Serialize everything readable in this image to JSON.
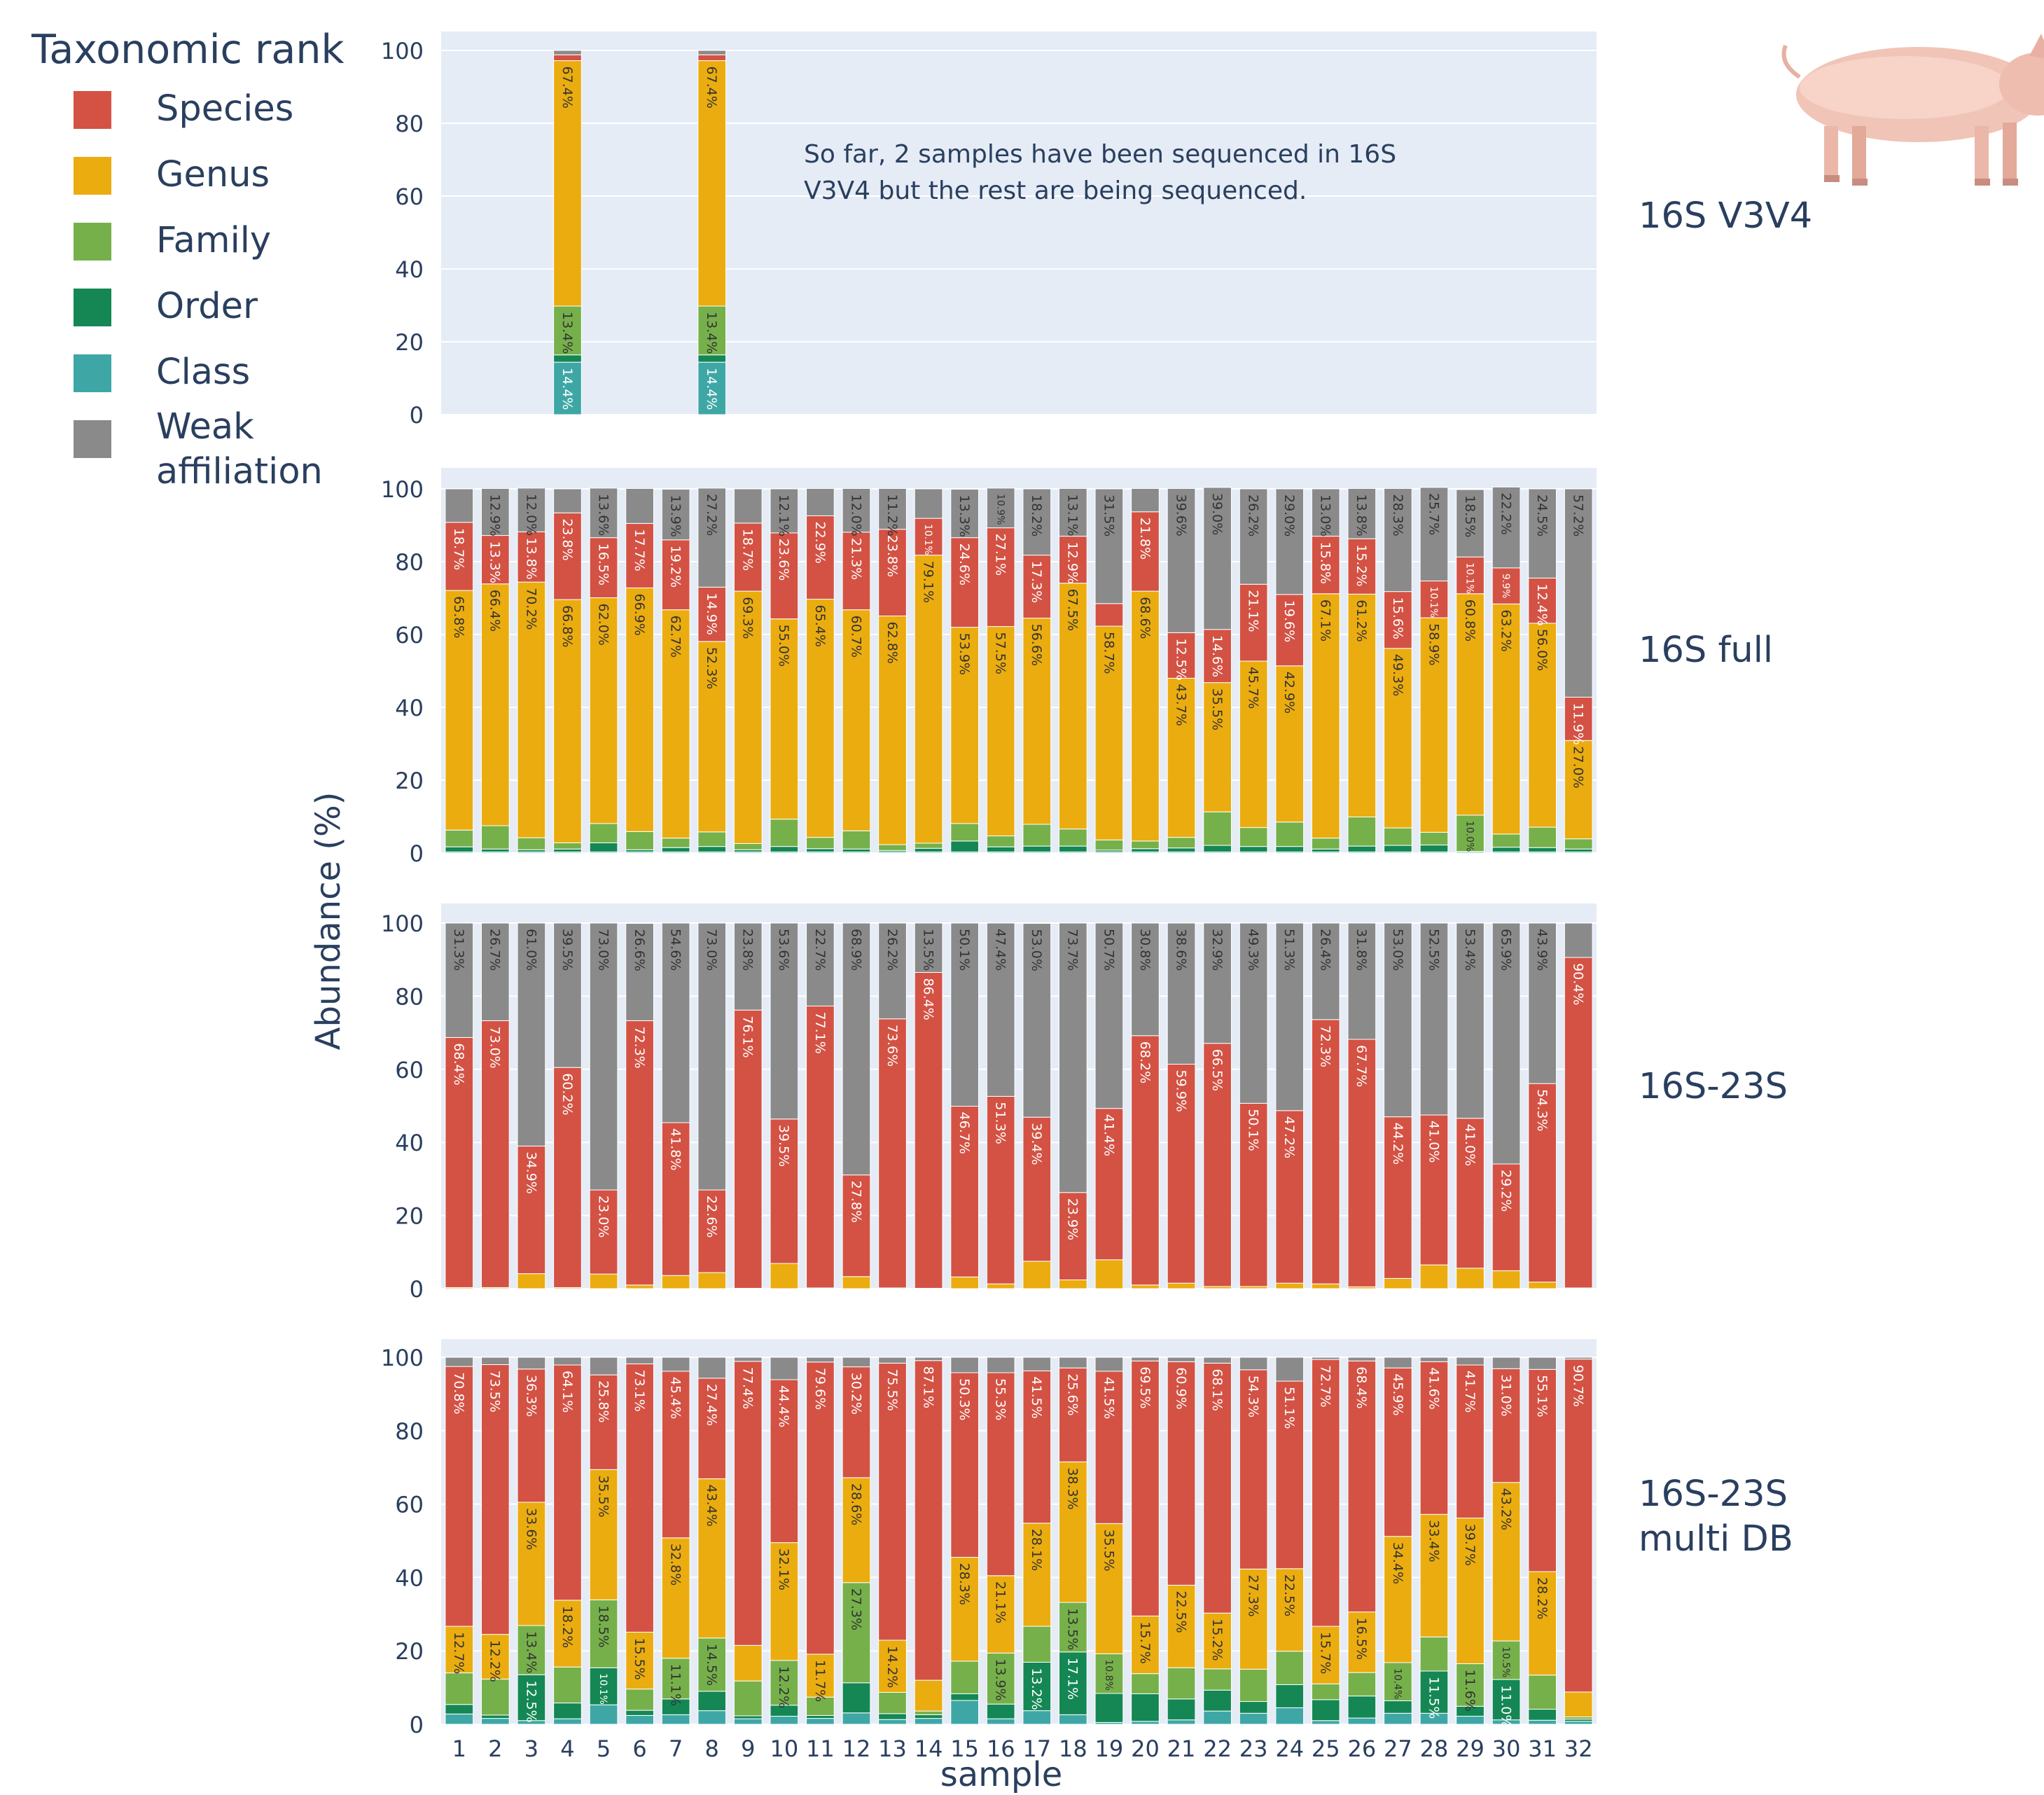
{
  "legend": {
    "title": "Taxonomic rank",
    "items": [
      {
        "label": "Species",
        "color": "#d35244"
      },
      {
        "label": "Genus",
        "color": "#ebac0f"
      },
      {
        "label": "Family",
        "color": "#76b04a"
      },
      {
        "label": "Order",
        "color": "#148754"
      },
      {
        "label": "Class",
        "color": "#3ea7a6"
      },
      {
        "label": "Weak affiliation",
        "color": "#8a8a8a"
      }
    ]
  },
  "annotation": "So far, 2 samples have been sequenced in 16S V3V4  but the rest are being sequenced.",
  "ylabel": "Abundance (%)",
  "xlabel": "sample",
  "yticks": [
    "0",
    "20",
    "40",
    "60",
    "80",
    "100"
  ],
  "xticks": [
    "1",
    "2",
    "3",
    "4",
    "5",
    "6",
    "7",
    "8",
    "9",
    "10",
    "11",
    "12",
    "13",
    "14",
    "15",
    "16",
    "17",
    "18",
    "19",
    "20",
    "21",
    "22",
    "23",
    "24",
    "25",
    "26",
    "27",
    "28",
    "29",
    "30",
    "31",
    "32"
  ],
  "image_icon": "pig-photo",
  "chart_data": [
    {
      "type": "bar",
      "stacked": true,
      "panel_label": "16S V3V4",
      "ylim": [
        0,
        100
      ],
      "categories": [
        "1",
        "2",
        "3",
        "4",
        "5",
        "6",
        "7",
        "8",
        "9",
        "10",
        "11",
        "12",
        "13",
        "14",
        "15",
        "16",
        "17",
        "18",
        "19",
        "20",
        "21",
        "22",
        "23",
        "24",
        "25",
        "26",
        "27",
        "28",
        "29",
        "30",
        "31",
        "32"
      ],
      "series": [
        {
          "name": "Class",
          "values": [
            null,
            null,
            null,
            14.4,
            null,
            null,
            null,
            14.4,
            null,
            null,
            null,
            null,
            null,
            null,
            null,
            null,
            null,
            null,
            null,
            null,
            null,
            null,
            null,
            null,
            null,
            null,
            null,
            null,
            null,
            null,
            null,
            null
          ]
        },
        {
          "name": "Order",
          "values": [
            null,
            null,
            null,
            2,
            null,
            null,
            null,
            2,
            null,
            null,
            null,
            null,
            null,
            null,
            null,
            null,
            null,
            null,
            null,
            null,
            null,
            null,
            null,
            null,
            null,
            null,
            null,
            null,
            null,
            null,
            null,
            null
          ]
        },
        {
          "name": "Family",
          "values": [
            null,
            null,
            null,
            13.4,
            null,
            null,
            null,
            13.4,
            null,
            null,
            null,
            null,
            null,
            null,
            null,
            null,
            null,
            null,
            null,
            null,
            null,
            null,
            null,
            null,
            null,
            null,
            null,
            null,
            null,
            null,
            null,
            null
          ]
        },
        {
          "name": "Genus",
          "values": [
            null,
            null,
            null,
            67.4,
            null,
            null,
            null,
            67.4,
            null,
            null,
            null,
            null,
            null,
            null,
            null,
            null,
            null,
            null,
            null,
            null,
            null,
            null,
            null,
            null,
            null,
            null,
            null,
            null,
            null,
            null,
            null,
            null
          ]
        },
        {
          "name": "Species",
          "values": [
            null,
            null,
            null,
            1.6,
            null,
            null,
            null,
            1.6,
            null,
            null,
            null,
            null,
            null,
            null,
            null,
            null,
            null,
            null,
            null,
            null,
            null,
            null,
            null,
            null,
            null,
            null,
            null,
            null,
            null,
            null,
            null,
            null
          ]
        },
        {
          "name": "Weak affiliation",
          "values": [
            null,
            null,
            null,
            1.2,
            null,
            null,
            null,
            1.2,
            null,
            null,
            null,
            null,
            null,
            null,
            null,
            null,
            null,
            null,
            null,
            null,
            null,
            null,
            null,
            null,
            null,
            null,
            null,
            null,
            null,
            null,
            null,
            null
          ]
        }
      ]
    },
    {
      "type": "bar",
      "stacked": true,
      "panel_label": "16S full",
      "ylim": [
        0,
        100
      ],
      "categories": [
        "1",
        "2",
        "3",
        "4",
        "5",
        "6",
        "7",
        "8",
        "9",
        "10",
        "11",
        "12",
        "13",
        "14",
        "15",
        "16",
        "17",
        "18",
        "19",
        "20",
        "21",
        "22",
        "23",
        "24",
        "25",
        "26",
        "27",
        "28",
        "29",
        "30",
        "31",
        "32"
      ],
      "series": [
        {
          "name": "Class",
          "values": [
            0.3,
            0.3,
            0.3,
            0.3,
            0.3,
            0.3,
            0.3,
            0.3,
            0.3,
            0.3,
            0.3,
            0.3,
            0.3,
            0.3,
            0.3,
            0.3,
            0.3,
            0.3,
            0.3,
            0.3,
            0.3,
            0.3,
            0.3,
            0.3,
            0.3,
            0.3,
            0.3,
            0.3,
            0.3,
            0.3,
            0.3,
            0.3
          ]
        },
        {
          "name": "Order",
          "values": [
            1.4,
            0.8,
            0.6,
            0.8,
            2.5,
            0.6,
            1.2,
            1.5,
            0.6,
            1.5,
            0.9,
            0.8,
            0.4,
            1.0,
            3.0,
            1.4,
            1.6,
            1.6,
            0.5,
            0.9,
            1.1,
            1.8,
            1.5,
            1.5,
            0.8,
            1.6,
            1.8,
            1.9,
            0.1,
            1.3,
            1.2,
            0.8
          ]
        },
        {
          "name": "Family",
          "values": [
            4.6,
            6.4,
            3.3,
            1.7,
            5.3,
            5.0,
            2.6,
            4.0,
            1.7,
            7.5,
            3.1,
            5.0,
            1.6,
            1.4,
            4.8,
            3.0,
            6.0,
            4.7,
            2.8,
            2.1,
            2.9,
            9.2,
            5.2,
            6.7,
            3.0,
            8.0,
            4.8,
            3.5,
            10.0,
            3.6,
            5.6,
            2.8
          ]
        },
        {
          "name": "Genus",
          "values": [
            65.8,
            66.4,
            70.2,
            66.8,
            62.0,
            66.9,
            62.7,
            52.3,
            69.3,
            55.0,
            65.4,
            60.7,
            62.8,
            79.1,
            53.9,
            57.5,
            56.6,
            67.5,
            58.7,
            68.6,
            43.7,
            35.5,
            45.7,
            42.9,
            67.1,
            61.2,
            49.3,
            58.9,
            60.8,
            63.2,
            56.0,
            27.0
          ]
        },
        {
          "name": "Species",
          "values": [
            18.7,
            13.3,
            13.8,
            23.8,
            16.5,
            17.7,
            19.2,
            14.9,
            18.7,
            23.6,
            22.9,
            21.3,
            23.8,
            10.1,
            24.6,
            27.1,
            17.3,
            12.9,
            6.2,
            21.8,
            12.5,
            14.6,
            21.1,
            19.6,
            15.8,
            15.2,
            15.6,
            10.1,
            10.1,
            9.9,
            12.4,
            11.9
          ]
        },
        {
          "name": "Weak affiliation",
          "values": [
            9.2,
            12.9,
            12.0,
            6.6,
            13.6,
            9.6,
            13.9,
            27.2,
            9.4,
            12.1,
            7.5,
            12.0,
            11.2,
            8.1,
            13.3,
            10.9,
            18.2,
            13.1,
            31.5,
            6.4,
            39.6,
            39.0,
            26.2,
            29.0,
            13.0,
            13.8,
            28.3,
            25.7,
            18.5,
            22.2,
            24.5,
            57.2
          ]
        }
      ]
    },
    {
      "type": "bar",
      "stacked": true,
      "panel_label": "16S-23S",
      "ylim": [
        0,
        100
      ],
      "categories": [
        "1",
        "2",
        "3",
        "4",
        "5",
        "6",
        "7",
        "8",
        "9",
        "10",
        "11",
        "12",
        "13",
        "14",
        "15",
        "16",
        "17",
        "18",
        "19",
        "20",
        "21",
        "22",
        "23",
        "24",
        "25",
        "26",
        "27",
        "28",
        "29",
        "30",
        "31",
        "32"
      ],
      "series": [
        {
          "name": "Genus",
          "values": [
            0.3,
            0.3,
            4.1,
            0.3,
            4.0,
            1.0,
            3.6,
            4.4,
            0.1,
            6.9,
            0.2,
            3.3,
            0.2,
            0.1,
            3.2,
            1.3,
            7.5,
            2.4,
            7.9,
            1.0,
            1.5,
            0.6,
            0.6,
            1.5,
            1.3,
            0.5,
            2.8,
            6.5,
            5.6,
            4.9,
            1.8,
            0.2
          ]
        },
        {
          "name": "Species",
          "values": [
            68.4,
            73.0,
            34.9,
            60.2,
            23.0,
            72.3,
            41.8,
            22.6,
            76.1,
            39.5,
            77.1,
            27.8,
            73.6,
            86.4,
            46.7,
            51.3,
            39.4,
            23.9,
            41.4,
            68.2,
            59.9,
            66.5,
            50.1,
            47.2,
            72.3,
            67.7,
            44.2,
            41.0,
            41.0,
            29.2,
            54.3,
            90.4
          ]
        },
        {
          "name": "Weak affiliation",
          "values": [
            31.3,
            26.7,
            61.0,
            39.5,
            73.0,
            26.6,
            54.6,
            73.0,
            23.8,
            53.6,
            22.7,
            68.9,
            26.2,
            13.5,
            50.1,
            47.4,
            53.0,
            73.7,
            50.7,
            30.8,
            38.6,
            32.9,
            49.3,
            51.3,
            26.4,
            31.8,
            53.0,
            52.5,
            53.4,
            65.9,
            43.9,
            9.4
          ]
        }
      ]
    },
    {
      "type": "bar",
      "stacked": true,
      "panel_label": "16S-23S multi DB",
      "ylim": [
        0,
        100
      ],
      "categories": [
        "1",
        "2",
        "3",
        "4",
        "5",
        "6",
        "7",
        "8",
        "9",
        "10",
        "11",
        "12",
        "13",
        "14",
        "15",
        "16",
        "17",
        "18",
        "19",
        "20",
        "21",
        "22",
        "23",
        "24",
        "25",
        "26",
        "27",
        "28",
        "29",
        "30",
        "31",
        "32"
      ],
      "series": [
        {
          "name": "Class",
          "values": [
            2.8,
            1.6,
            1.0,
            1.5,
            5.3,
            2.4,
            2.6,
            3.7,
            1.5,
            2.2,
            1.6,
            3.1,
            1.3,
            1.6,
            6.5,
            1.5,
            3.7,
            2.6,
            0.5,
            0.8,
            1.2,
            3.6,
            3.0,
            4.5,
            1.0,
            1.7,
            3.0,
            3.0,
            2.2,
            1.2,
            1.1,
            0.8
          ]
        },
        {
          "name": "Order",
          "values": [
            2.6,
            0.9,
            12.5,
            4.3,
            10.1,
            1.4,
            4.3,
            5.3,
            0.8,
            3.0,
            0.8,
            8.2,
            1.6,
            1.0,
            1.8,
            4.0,
            13.2,
            17.1,
            7.9,
            7.5,
            5.7,
            5.7,
            3.2,
            6.3,
            5.7,
            6.0,
            3.4,
            11.5,
            2.7,
            11.0,
            3.0,
            0.6
          ]
        },
        {
          "name": "Family",
          "values": [
            8.6,
            9.8,
            13.4,
            9.8,
            18.5,
            5.8,
            11.1,
            14.5,
            9.5,
            12.2,
            5.0,
            27.3,
            5.8,
            1.0,
            8.9,
            13.9,
            9.8,
            13.5,
            10.8,
            5.5,
            8.5,
            5.8,
            8.8,
            9.1,
            4.3,
            6.4,
            10.4,
            9.3,
            11.6,
            10.5,
            9.3,
            0.6
          ]
        },
        {
          "name": "Genus",
          "values": [
            12.7,
            12.2,
            33.6,
            18.2,
            35.5,
            15.5,
            32.8,
            43.4,
            9.7,
            32.1,
            11.7,
            28.6,
            14.2,
            8.4,
            28.3,
            21.1,
            28.1,
            38.3,
            35.5,
            15.7,
            22.5,
            15.2,
            27.3,
            22.5,
            15.7,
            16.5,
            34.4,
            33.4,
            39.7,
            43.2,
            28.2,
            6.8
          ]
        },
        {
          "name": "Species",
          "values": [
            70.8,
            73.5,
            36.3,
            64.1,
            25.8,
            73.1,
            45.4,
            27.4,
            77.4,
            44.4,
            79.6,
            30.2,
            75.5,
            87.1,
            50.3,
            55.3,
            41.5,
            25.6,
            41.5,
            69.5,
            60.9,
            68.1,
            54.3,
            51.1,
            72.7,
            68.4,
            45.9,
            41.6,
            41.7,
            31.0,
            55.1,
            90.7
          ]
        },
        {
          "name": "Weak affiliation",
          "values": [
            2.5,
            2.0,
            3.2,
            2.1,
            4.8,
            1.8,
            3.8,
            5.7,
            1.1,
            6.1,
            1.3,
            2.6,
            1.6,
            0.9,
            4.2,
            4.2,
            3.7,
            2.9,
            3.8,
            1.0,
            1.2,
            1.6,
            3.4,
            6.5,
            0.6,
            1.0,
            2.9,
            1.2,
            2.1,
            3.1,
            3.3,
            0.5
          ]
        }
      ]
    }
  ]
}
